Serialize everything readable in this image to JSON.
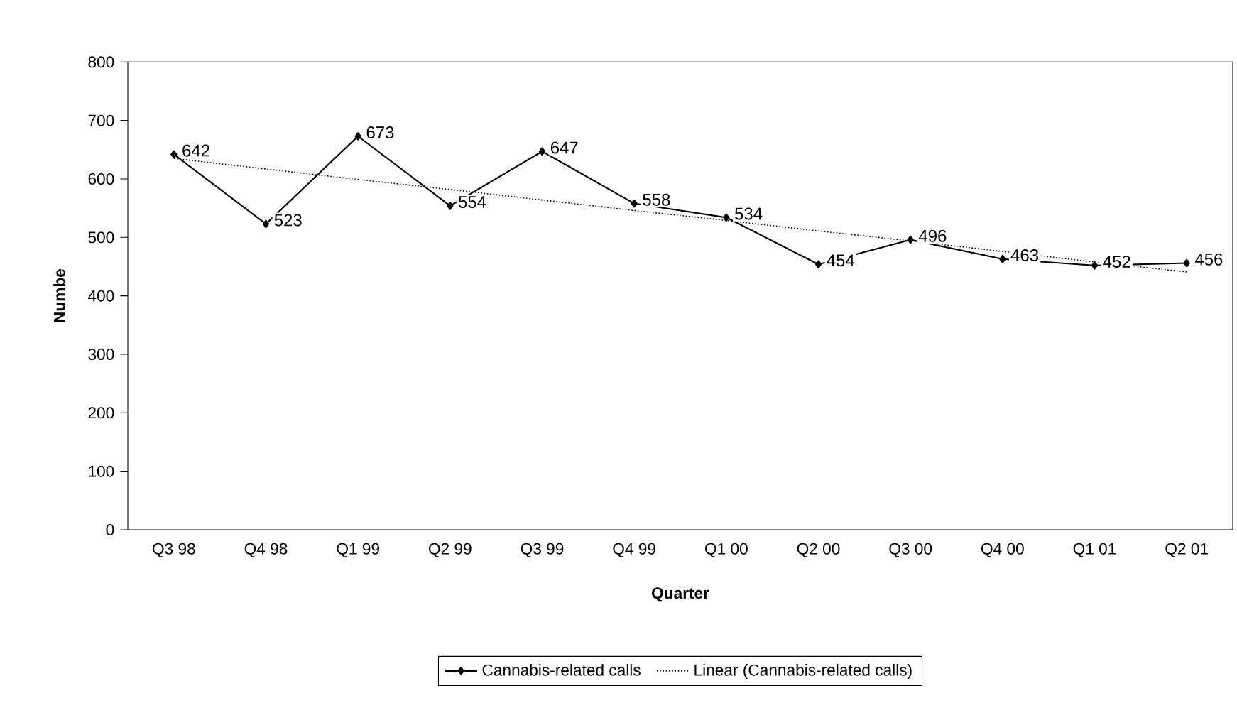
{
  "chart_data": {
    "type": "line",
    "xlabel": "Quarter",
    "ylabel": "Numbe",
    "categories": [
      "Q3 98",
      "Q4 98",
      "Q1 99",
      "Q2 99",
      "Q3 99",
      "Q4 99",
      "Q1 00",
      "Q2 00",
      "Q3 00",
      "Q4 00",
      "Q1 01",
      "Q2 01"
    ],
    "series": [
      {
        "name": "Cannabis-related calls",
        "color": "#000000",
        "marker": "diamond",
        "line_style": "solid",
        "data_labels": true,
        "values": [
          642,
          523,
          673,
          554,
          647,
          558,
          534,
          454,
          496,
          463,
          452,
          456
        ]
      },
      {
        "name": "Linear (Cannabis-related calls)",
        "type": "line",
        "color": "#000000",
        "marker": "none",
        "line_style": "dotted",
        "values": [
          635,
          617,
          599,
          582,
          564,
          546,
          529,
          511,
          494,
          476,
          458,
          441
        ]
      }
    ],
    "ylim": [
      0,
      800
    ],
    "yticks": [
      0,
      100,
      200,
      300,
      400,
      500,
      600,
      700,
      800
    ],
    "grid": false,
    "legend": "bottom"
  }
}
